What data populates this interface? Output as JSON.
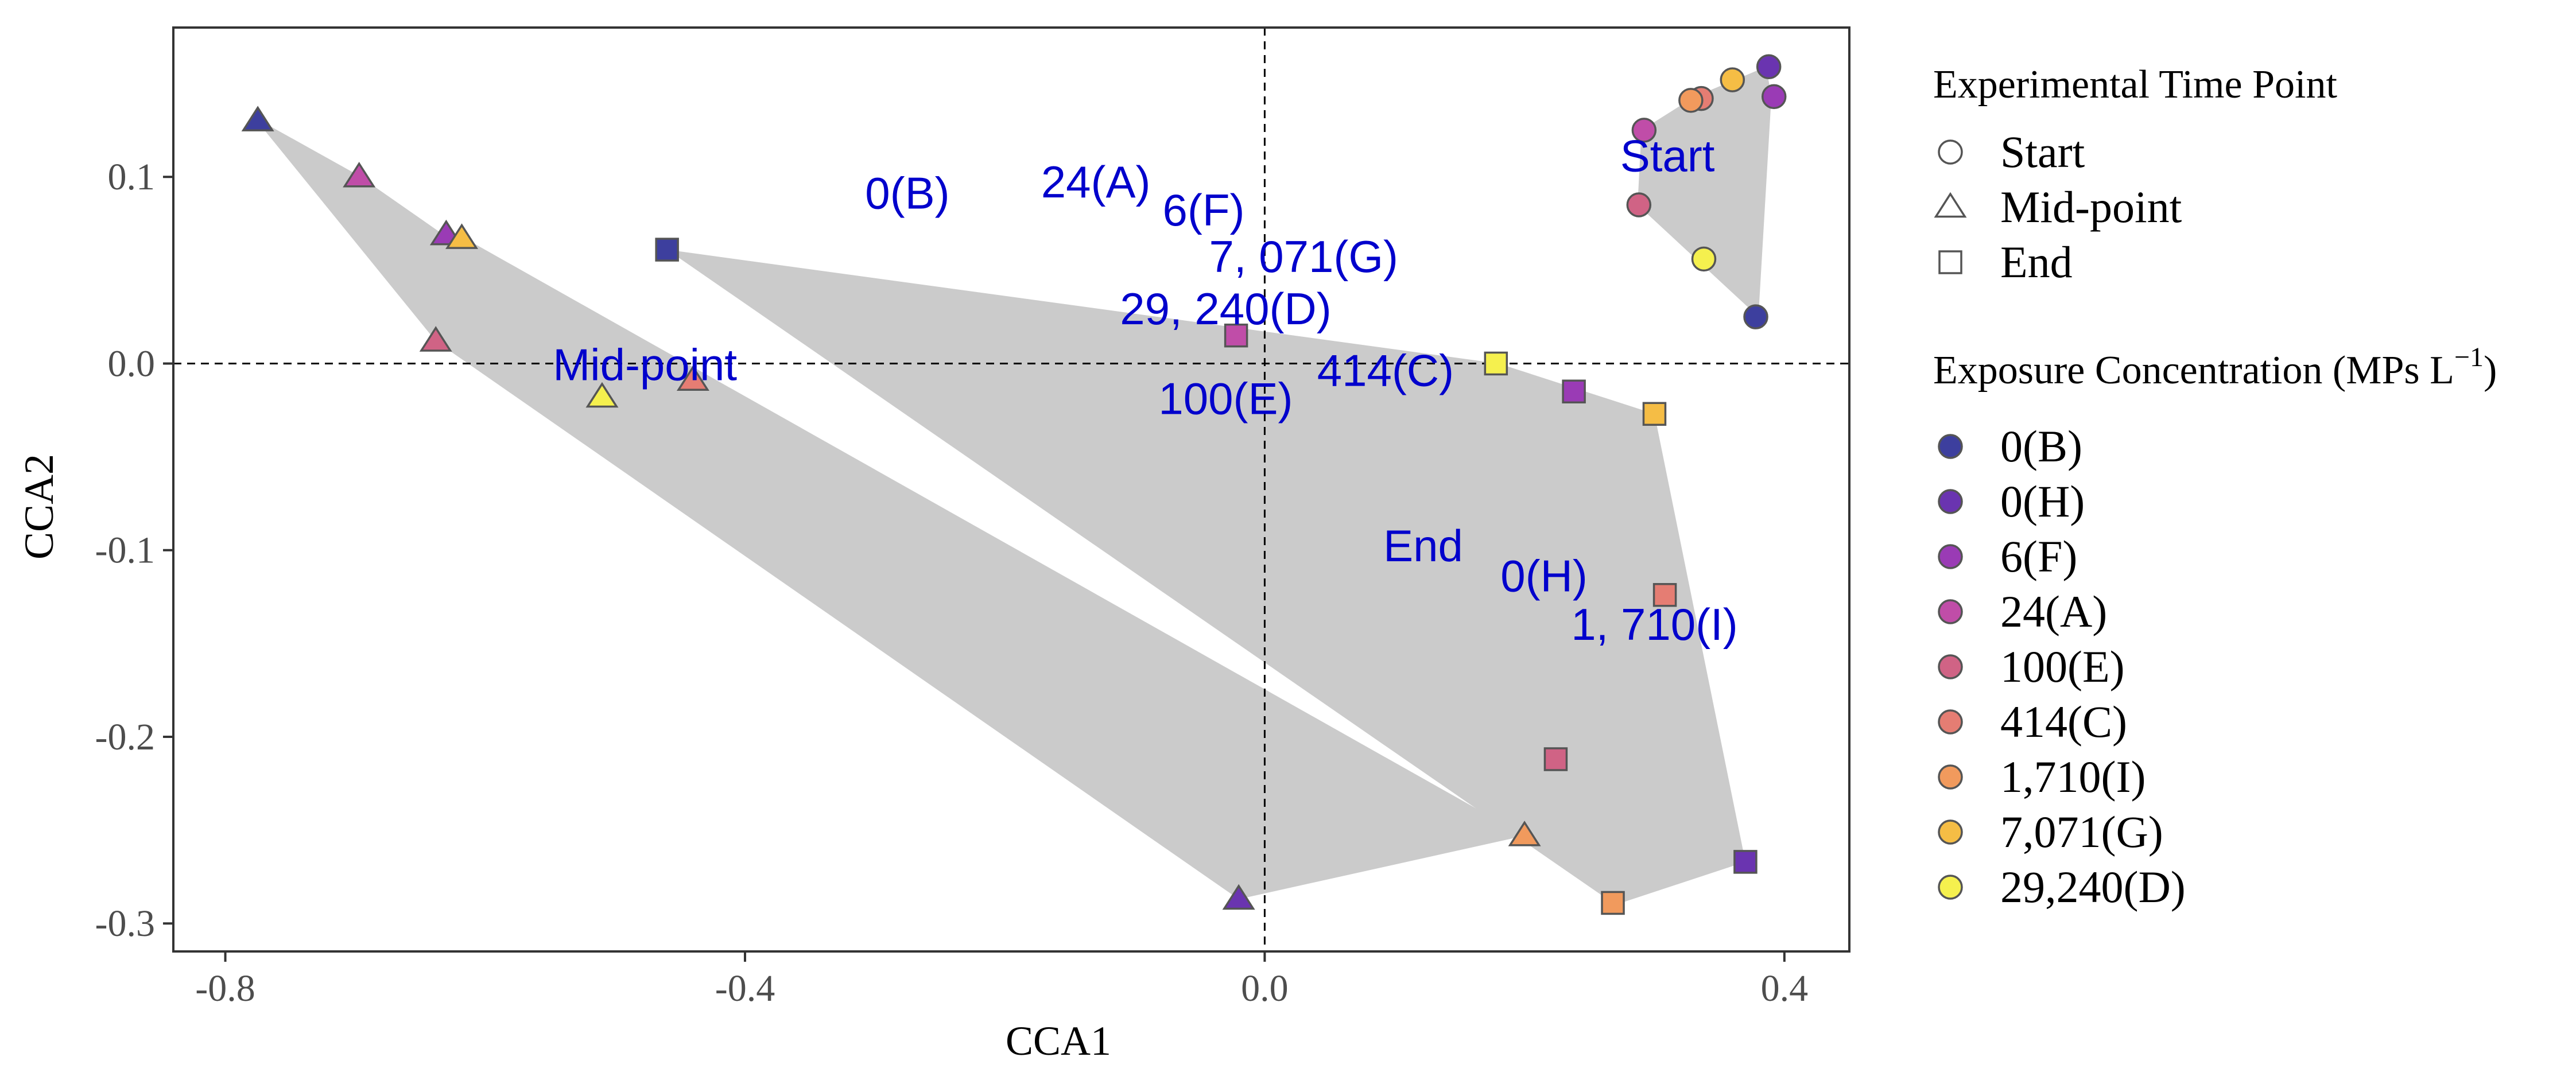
{
  "chart_data": {
    "type": "scatter",
    "title": "",
    "xlabel": "CCA1",
    "ylabel": "CCA2",
    "xlim": [
      -0.84,
      0.45
    ],
    "ylim": [
      -0.315,
      0.18
    ],
    "x_ticks": [
      -0.8,
      -0.4,
      0.0,
      0.4
    ],
    "x_tick_labels": [
      "-0.8",
      "-0.4",
      "0.0",
      "0.4"
    ],
    "y_ticks": [
      -0.3,
      -0.2,
      -0.1,
      0.0,
      0.1
    ],
    "y_tick_labels": [
      "-0.3",
      "-0.2",
      "-0.1",
      "0.0",
      "0.1"
    ],
    "reference_lines": {
      "x": 0,
      "y": 0,
      "style": "dashed"
    },
    "grid": false,
    "legend_position": "right",
    "legend": {
      "shape_title": "Experimental Time Point",
      "shapes": [
        {
          "label": "Start",
          "shape": "circle"
        },
        {
          "label": "Mid-point",
          "shape": "triangle"
        },
        {
          "label": "End",
          "shape": "square"
        }
      ],
      "color_title_main": "Exposure Concentration (MPs L",
      "color_title_sup": "−1",
      "color_title_end": ")",
      "colors": [
        {
          "label": "0(B)",
          "color": "#3d3f9e"
        },
        {
          "label": "0(H)",
          "color": "#6a34b0"
        },
        {
          "label": "6(F)",
          "color": "#9a3bb5"
        },
        {
          "label": "24(A)",
          "color": "#c04da8"
        },
        {
          "label": "100(E)",
          "color": "#d06385"
        },
        {
          "label": "414(C)",
          "color": "#e57d73"
        },
        {
          "label": "1,710(I)",
          "color": "#f19a5d"
        },
        {
          "label": "7,071(G)",
          "color": "#f5bd45"
        },
        {
          "label": "29,240(D)",
          "color": "#f5f04e"
        }
      ]
    },
    "hulls": [
      {
        "name": "Start",
        "points": [
          [
            0.38,
            0.025
          ],
          [
            0.39,
            0.143
          ],
          [
            0.386,
            0.159
          ],
          [
            0.362,
            0.152
          ],
          [
            0.331,
            0.143
          ],
          [
            0.29,
            0.125
          ],
          [
            0.287,
            0.085
          ]
        ]
      },
      {
        "name": "Mid-point",
        "points": [
          [
            -0.778,
            0.132
          ],
          [
            -0.698,
            0.101
          ],
          [
            -0.632,
            0.069
          ],
          [
            -0.618,
            0.068
          ],
          [
            0.2,
            -0.253
          ],
          [
            -0.02,
            -0.287
          ],
          [
            -0.638,
            0.012
          ]
        ]
      },
      {
        "name": "End",
        "points": [
          [
            -0.46,
            0.061
          ],
          [
            0.18,
            0.0
          ],
          [
            0.3,
            -0.027
          ],
          [
            0.37,
            -0.267
          ],
          [
            0.27,
            -0.29
          ]
        ]
      }
    ],
    "series": [
      {
        "name": "Start",
        "shape": "circle",
        "points": [
          {
            "x": 0.378,
            "y": 0.025,
            "group": "0(B)"
          },
          {
            "x": 0.388,
            "y": 0.159,
            "group": "0(H)"
          },
          {
            "x": 0.392,
            "y": 0.143,
            "group": "6(F)"
          },
          {
            "x": 0.292,
            "y": 0.125,
            "group": "24(A)"
          },
          {
            "x": 0.288,
            "y": 0.085,
            "group": "100(E)"
          },
          {
            "x": 0.336,
            "y": 0.142,
            "group": "414(C)"
          },
          {
            "x": 0.328,
            "y": 0.141,
            "group": "1,710(I)"
          },
          {
            "x": 0.36,
            "y": 0.152,
            "group": "7,071(G)"
          },
          {
            "x": 0.338,
            "y": 0.056,
            "group": "29,240(D)"
          }
        ]
      },
      {
        "name": "Mid-point",
        "shape": "triangle",
        "points": [
          {
            "x": -0.775,
            "y": 0.13,
            "group": "0(B)"
          },
          {
            "x": -0.02,
            "y": -0.287,
            "group": "0(H)"
          },
          {
            "x": -0.63,
            "y": 0.069,
            "group": "6(F)"
          },
          {
            "x": -0.697,
            "y": 0.1,
            "group": "24(A)"
          },
          {
            "x": -0.638,
            "y": 0.012,
            "group": "100(E)"
          },
          {
            "x": -0.44,
            "y": -0.009,
            "group": "414(C)"
          },
          {
            "x": 0.2,
            "y": -0.253,
            "group": "1,710(I)"
          },
          {
            "x": -0.618,
            "y": 0.067,
            "group": "7,071(G)"
          },
          {
            "x": -0.51,
            "y": -0.018,
            "group": "29,240(D)"
          }
        ]
      },
      {
        "name": "End",
        "shape": "square",
        "points": [
          {
            "x": -0.46,
            "y": 0.061,
            "group": "0(B)"
          },
          {
            "x": 0.37,
            "y": -0.267,
            "group": "0(H)"
          },
          {
            "x": 0.238,
            "y": -0.015,
            "group": "6(F)"
          },
          {
            "x": -0.022,
            "y": 0.015,
            "group": "24(A)"
          },
          {
            "x": 0.224,
            "y": -0.212,
            "group": "100(E)"
          },
          {
            "x": 0.308,
            "y": -0.124,
            "group": "414(C)"
          },
          {
            "x": 0.268,
            "y": -0.289,
            "group": "1,710(I)"
          },
          {
            "x": 0.3,
            "y": -0.027,
            "group": "7,071(G)"
          },
          {
            "x": 0.178,
            "y": 0.0,
            "group": "29,240(D)"
          }
        ]
      }
    ],
    "annotations": [
      {
        "text": "0(B)",
        "x": -0.275,
        "y": 0.083
      },
      {
        "text": "24(A)",
        "x": -0.13,
        "y": 0.089
      },
      {
        "text": "6(F)",
        "x": -0.047,
        "y": 0.074
      },
      {
        "text": "7, 071(G)",
        "x": 0.03,
        "y": 0.049
      },
      {
        "text": "29, 240(D)",
        "x": -0.03,
        "y": 0.021
      },
      {
        "text": "414(C)",
        "x": 0.093,
        "y": -0.012
      },
      {
        "text": "100(E)",
        "x": -0.03,
        "y": -0.027
      },
      {
        "text": "Start",
        "x": 0.31,
        "y": 0.103
      },
      {
        "text": "Mid-point",
        "x": -0.477,
        "y": -0.009
      },
      {
        "text": "End",
        "x": 0.122,
        "y": -0.106
      },
      {
        "text": "0(H)",
        "x": 0.215,
        "y": -0.122
      },
      {
        "text": "1, 710(I)",
        "x": 0.3,
        "y": -0.148
      }
    ]
  }
}
